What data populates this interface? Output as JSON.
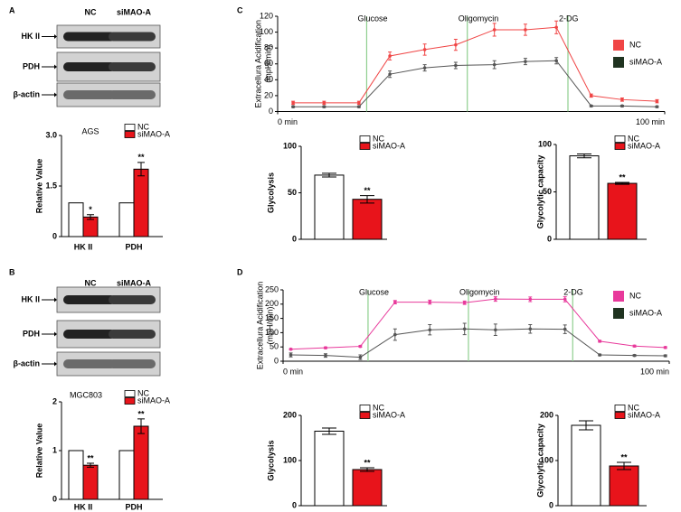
{
  "panel_labels": [
    "A",
    "B",
    "C",
    "D"
  ],
  "blots": [
    {
      "lanes": [
        "NC",
        "siMAO-A"
      ],
      "rows": [
        "HK II",
        "PDH",
        "β-actin"
      ]
    },
    {
      "lanes": [
        "NC",
        "siMAO-A"
      ],
      "rows": [
        "HK II",
        "PDH",
        "β-actin"
      ]
    }
  ],
  "chart_data": [
    {
      "type": "bar",
      "title": "AGS",
      "categories": [
        "HK II",
        "PDH"
      ],
      "series": [
        {
          "name": "NC",
          "color": "#ffffff",
          "values": [
            1,
            1
          ]
        },
        {
          "name": "siMAO-A",
          "color": "#e8141b",
          "values": [
            0.58,
            2.0
          ],
          "errors": [
            0.07,
            0.2
          ],
          "annotations": [
            "*",
            "**"
          ]
        }
      ],
      "ylabel": "Relative Value",
      "ylim": [
        0,
        3
      ],
      "yticks": [
        0,
        1.5,
        {
          "value": 3,
          "label": "3.0"
        }
      ]
    },
    {
      "type": "bar",
      "title": "MGC803",
      "categories": [
        "HK II",
        "PDH"
      ],
      "series": [
        {
          "name": "NC",
          "color": "#ffffff",
          "values": [
            1,
            1
          ]
        },
        {
          "name": "siMAO-A",
          "color": "#e8141b",
          "values": [
            0.7,
            1.5
          ],
          "errors": [
            0.04,
            0.15
          ],
          "annotations": [
            "**",
            "**"
          ]
        }
      ],
      "ylabel": "Relative Value",
      "ylim": [
        0,
        2
      ],
      "yticks": [
        0,
        1,
        2
      ]
    },
    {
      "type": "line",
      "x": [
        4,
        12,
        21,
        29,
        38,
        46,
        56,
        64,
        72,
        81,
        89,
        98
      ],
      "series": [
        {
          "name": "NC",
          "color": "#f04545",
          "line_color": "#f04545",
          "values": [
            11,
            11,
            11,
            70,
            78,
            84,
            103,
            103,
            106,
            20,
            15,
            13
          ],
          "errors": [
            2,
            2,
            2,
            5,
            7,
            7,
            8,
            7,
            8,
            2,
            2,
            2
          ]
        },
        {
          "name": "siMAO-A",
          "color": "#1f3320",
          "line_color": "#555555",
          "values": [
            6,
            6,
            6,
            47,
            55,
            58,
            59,
            63,
            64,
            7,
            7,
            6
          ],
          "errors": [
            1,
            1,
            1,
            4,
            4,
            4,
            5,
            4,
            4,
            1,
            1,
            1
          ]
        }
      ],
      "markers": [
        {
          "label": "Glucose",
          "x": 23
        },
        {
          "label": "Oligomycin",
          "x": 49
        },
        {
          "label": "2-DG",
          "x": 75
        }
      ],
      "marker_color": "#8fcf8f",
      "ylabel": "Extracellura Acidification",
      "yunit": "(mpH/min)",
      "xlim": [
        0,
        100
      ],
      "xticks": [
        {
          "value": 0,
          "label": "0 min"
        },
        {
          "value": 100,
          "label": "100 min"
        }
      ],
      "ylim": [
        0,
        120
      ],
      "yticks": [
        0,
        20,
        40,
        60,
        80,
        100,
        120
      ]
    },
    {
      "type": "bar",
      "categories": [
        null
      ],
      "series": [
        {
          "name": "NC",
          "color": "#ffffff",
          "values": [
            69
          ],
          "errors": [
            2
          ]
        },
        {
          "name": "siMAO-A",
          "color": "#e8141b",
          "values": [
            43
          ],
          "errors": [
            4
          ],
          "annotations": [
            "**"
          ]
        }
      ],
      "ylabel": "Glycolysis",
      "ylim": [
        0,
        100
      ],
      "yticks": [
        0,
        50,
        100
      ]
    },
    {
      "type": "bar",
      "categories": [
        null
      ],
      "series": [
        {
          "name": "NC",
          "color": "#ffffff",
          "values": [
            88
          ],
          "errors": [
            2
          ]
        },
        {
          "name": "siMAO-A",
          "color": "#e8141b",
          "values": [
            59
          ],
          "errors": [
            1
          ],
          "annotations": [
            "**"
          ]
        }
      ],
      "ylabel": "Glycolytic capacity",
      "ylim": [
        0,
        100
      ],
      "yticks": [
        0,
        50,
        100
      ]
    },
    {
      "type": "line",
      "x": [
        2,
        11,
        20,
        29,
        38,
        47,
        55,
        64,
        73,
        82,
        91,
        99
      ],
      "series": [
        {
          "name": "NC",
          "color": "#e8399b",
          "line_color": "#e8399b",
          "values": [
            42,
            47,
            52,
            207,
            207,
            205,
            218,
            217,
            217,
            70,
            53,
            48
          ],
          "errors": [
            2,
            3,
            3,
            6,
            7,
            6,
            8,
            8,
            9,
            3,
            3,
            3
          ]
        },
        {
          "name": "siMAO-A",
          "color": "#1f3320",
          "line_color": "#555555",
          "values": [
            22,
            20,
            14,
            93,
            110,
            113,
            110,
            113,
            112,
            22,
            20,
            19
          ],
          "errors": [
            7,
            6,
            8,
            20,
            18,
            20,
            20,
            15,
            15,
            3,
            3,
            3
          ]
        }
      ],
      "markers": [
        {
          "label": "Glucose",
          "x": 22
        },
        {
          "label": "Oligomycin",
          "x": 48
        },
        {
          "label": "2-DG",
          "x": 75
        }
      ],
      "marker_color": "#8fcf8f",
      "ylabel": "Extracellura Acidification",
      "yunit": "(mpH/min)",
      "xlim": [
        0,
        100
      ],
      "xticks": [
        {
          "value": 0,
          "label": "0 min"
        },
        {
          "value": 100,
          "label": "100 min"
        }
      ],
      "ylim": [
        0,
        250
      ],
      "yticks": [
        0,
        50,
        100,
        150,
        200,
        250
      ]
    },
    {
      "type": "bar",
      "categories": [
        null
      ],
      "series": [
        {
          "name": "NC",
          "color": "#ffffff",
          "values": [
            165
          ],
          "errors": [
            7
          ]
        },
        {
          "name": "siMAO-A",
          "color": "#e8141b",
          "values": [
            80
          ],
          "errors": [
            4
          ],
          "annotations": [
            "**"
          ]
        }
      ],
      "ylabel": "Glycolysis",
      "ylim": [
        0,
        200
      ],
      "yticks": [
        0,
        100,
        200
      ]
    },
    {
      "type": "bar",
      "categories": [
        null
      ],
      "series": [
        {
          "name": "NC",
          "color": "#ffffff",
          "values": [
            178
          ],
          "errors": [
            10
          ]
        },
        {
          "name": "siMAO-A",
          "color": "#e8141b",
          "values": [
            88
          ],
          "errors": [
            8
          ],
          "annotations": [
            "**"
          ]
        }
      ],
      "ylabel": "Glycolytic capacity",
      "ylim": [
        0,
        200
      ],
      "yticks": [
        0,
        100,
        200
      ]
    }
  ]
}
